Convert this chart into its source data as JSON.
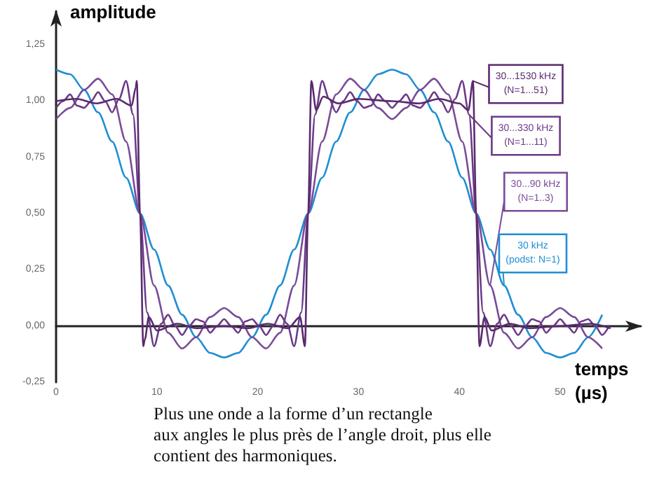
{
  "chart_data": {
    "type": "line",
    "ylabel": "amplitude",
    "xlabel": "temps\n(µs)",
    "xlim": [
      0,
      58
    ],
    "xticks": [
      0,
      10,
      20,
      30,
      40,
      50
    ],
    "ylim": [
      -0.25,
      1.4
    ],
    "yticks": [
      {
        "value": -0.25,
        "label": "-0,25"
      },
      {
        "value": 0,
        "label": "0,00"
      },
      {
        "value": 0.25,
        "label": "0,25"
      },
      {
        "value": 0.5,
        "label": "0,50"
      },
      {
        "value": 0.75,
        "label": "0,75"
      },
      {
        "value": 1,
        "label": "1,00"
      },
      {
        "value": 1.25,
        "label": "1,25"
      }
    ],
    "marker": "none",
    "line_style": "solid",
    "annotations": [
      "Plus une onde a la forme d’un rectangle\naux angles le plus près de l’angle droit, plus elle\ncontient des harmoniques."
    ],
    "series": [
      {
        "name": "30...1530 kHz\n(N=1...51)",
        "color": "#5a2a70",
        "x": [
          0,
          2,
          4,
          6,
          7.5,
          7.9,
          8.0,
          8.33,
          8.65,
          8.8,
          9.2,
          10,
          12,
          14,
          16.67,
          19,
          21,
          23,
          24.2,
          24.68,
          25,
          25.32,
          25.8,
          26.5,
          28,
          30,
          33.33,
          36,
          38,
          40,
          40.9,
          41.35,
          41.67,
          42.0,
          42.5,
          43.2,
          45,
          47,
          50,
          53,
          55
        ],
        "values": [
          1.0,
          1.01,
          0.99,
          1.01,
          0.98,
          1.06,
          1.09,
          0.5,
          -0.09,
          -0.06,
          0.04,
          -0.02,
          0.01,
          -0.01,
          0.0,
          -0.01,
          0.01,
          -0.01,
          0.04,
          -0.09,
          0.5,
          1.09,
          0.96,
          1.02,
          0.99,
          1.01,
          1.0,
          0.99,
          1.01,
          0.99,
          0.96,
          1.09,
          0.5,
          -0.09,
          0.04,
          -0.02,
          0.01,
          -0.01,
          0.0,
          0.01,
          -0.01
        ]
      },
      {
        "name": "30...330 kHz\n(N=1...11)",
        "color": "#6b3a88",
        "x": [
          0,
          0.69,
          1.39,
          2.08,
          2.78,
          3.47,
          4.17,
          4.86,
          5.56,
          6.25,
          6.94,
          7.64,
          8.33,
          9.03,
          9.72,
          10.42,
          11.11,
          11.81,
          12.5,
          13.19,
          13.89,
          14.58,
          15.28,
          15.97,
          16.67,
          17.36,
          18.06,
          18.75,
          19.44,
          20.14,
          20.83,
          21.53,
          22.22,
          22.92,
          23.61,
          24.31,
          25,
          25.69,
          26.39,
          27.08,
          27.78,
          28.47,
          29.17,
          29.86,
          30.56,
          31.25,
          31.94,
          32.64,
          33.33,
          34.03,
          34.72,
          35.42,
          36.11,
          36.81,
          37.5,
          38.19,
          38.89,
          39.58,
          40.28,
          40.97,
          41.67,
          42.36,
          43.06,
          43.75,
          44.44,
          45.14,
          45.83,
          46.53,
          47.22,
          47.92,
          48.61,
          49.31,
          50,
          50.69,
          51.39,
          52.08,
          52.78,
          53.47,
          54.17,
          54.86
        ],
        "values": [
          0.97,
          1.0,
          1.03,
          0.98,
          0.97,
          1.0,
          1.04,
          1.0,
          0.95,
          1.01,
          1.09,
          0.94,
          0.5,
          0.06,
          -0.09,
          0.01,
          0.05,
          0.0,
          -0.04,
          0.0,
          0.03,
          0.02,
          -0.03,
          0.0,
          0.03,
          0.0,
          -0.03,
          0.02,
          0.03,
          0.0,
          -0.04,
          0.0,
          0.05,
          0.01,
          -0.09,
          0.06,
          0.5,
          0.94,
          1.09,
          1.01,
          0.95,
          1.0,
          1.04,
          1.0,
          0.97,
          0.98,
          1.03,
          1.0,
          0.97,
          1.0,
          1.03,
          0.98,
          0.97,
          1.0,
          1.04,
          1.0,
          0.95,
          1.01,
          1.09,
          0.94,
          0.5,
          0.06,
          -0.09,
          0.01,
          0.05,
          0.0,
          -0.04,
          0.0,
          0.03,
          0.02,
          -0.03,
          0.0,
          0.03,
          0.0,
          -0.03,
          0.02,
          0.03,
          0.0,
          -0.04,
          0.0
        ]
      },
      {
        "name": "30...90 kHz\n(N=1..3)",
        "color": "#7a4b98",
        "x": [
          0,
          1.39,
          2.78,
          4.17,
          5.56,
          6.94,
          8.33,
          9.72,
          11.11,
          12.5,
          13.89,
          15.28,
          16.67,
          18.06,
          19.44,
          20.83,
          22.22,
          23.61,
          25,
          26.39,
          27.78,
          29.17,
          30.56,
          31.94,
          33.33,
          34.72,
          36.11,
          37.5,
          38.89,
          40.28,
          41.67,
          43.06,
          44.44,
          45.83,
          47.22,
          48.61,
          50,
          51.39,
          52.78,
          54.17
        ],
        "values": [
          0.92,
          0.97,
          1.05,
          1.1,
          1.03,
          0.82,
          0.5,
          0.18,
          -0.03,
          -0.1,
          -0.05,
          0.04,
          0.08,
          0.04,
          -0.05,
          -0.1,
          -0.03,
          0.18,
          0.5,
          0.82,
          1.03,
          1.1,
          1.05,
          0.97,
          0.92,
          0.97,
          1.05,
          1.1,
          1.03,
          0.82,
          0.5,
          0.18,
          -0.03,
          -0.1,
          -0.05,
          0.04,
          0.08,
          0.04,
          -0.05,
          -0.1
        ]
      },
      {
        "name": "30 kHz\n(podst: N=1)",
        "color": "#1e8fd2",
        "x": [
          0,
          1.39,
          2.78,
          4.17,
          5.56,
          6.94,
          8.33,
          9.72,
          11.11,
          12.5,
          13.89,
          15.28,
          16.67,
          18.06,
          19.44,
          20.83,
          22.22,
          23.61,
          25,
          26.39,
          27.78,
          29.17,
          30.56,
          31.94,
          33.33,
          34.72,
          36.11,
          37.5,
          38.89,
          40.28,
          41.67,
          43.06,
          44.44,
          45.83,
          47.22,
          48.61,
          50,
          51.39,
          52.78,
          54.17
        ],
        "values": [
          1.14,
          1.12,
          1.05,
          0.95,
          0.82,
          0.66,
          0.5,
          0.34,
          0.18,
          0.05,
          -0.05,
          -0.12,
          -0.14,
          -0.12,
          -0.05,
          0.05,
          0.18,
          0.34,
          0.5,
          0.66,
          0.82,
          0.95,
          1.05,
          1.12,
          1.14,
          1.12,
          1.05,
          0.95,
          0.82,
          0.66,
          0.5,
          0.34,
          0.18,
          0.05,
          -0.05,
          -0.12,
          -0.14,
          -0.12,
          -0.05,
          0.05
        ]
      }
    ]
  }
}
